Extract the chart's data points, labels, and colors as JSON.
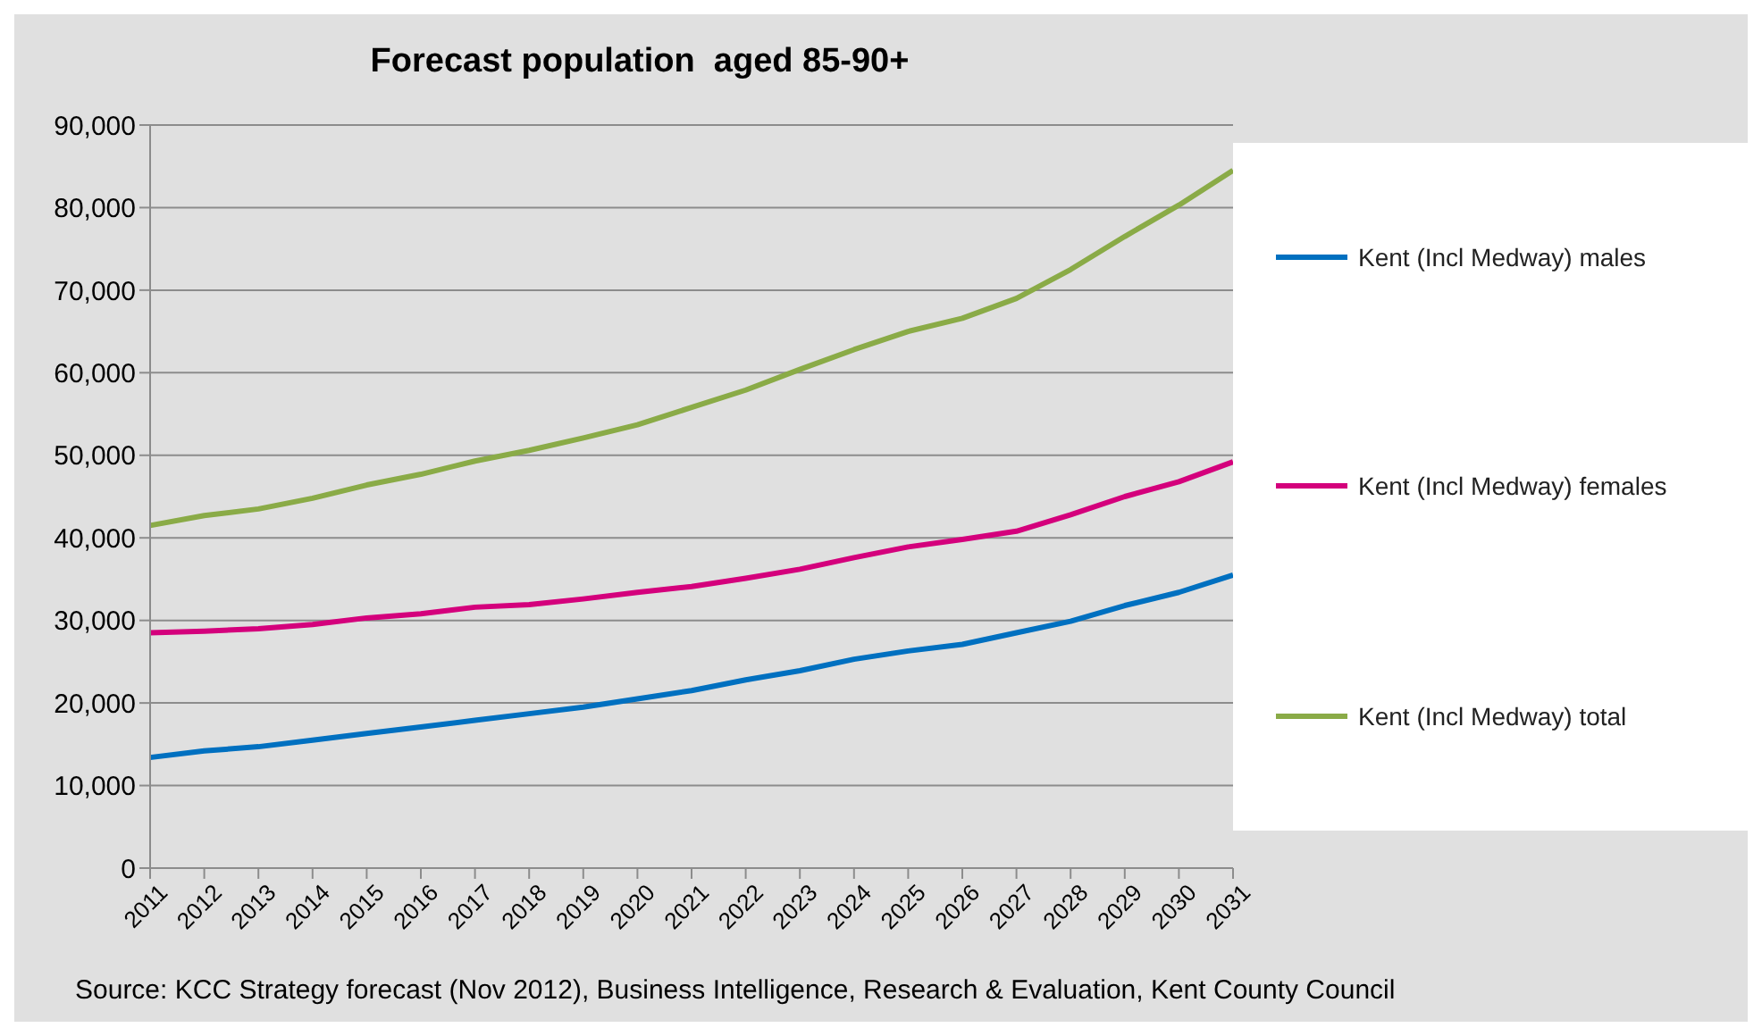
{
  "chart_data": {
    "type": "line",
    "title": "Forecast population  aged 85-90+",
    "categories": [
      "2011",
      "2012",
      "2013",
      "2014",
      "2015",
      "2016",
      "2017",
      "2018",
      "2019",
      "2020",
      "2021",
      "2022",
      "2023",
      "2024",
      "2025",
      "2026",
      "2027",
      "2028",
      "2029",
      "2030",
      "2031"
    ],
    "series": [
      {
        "name": "Kent (Incl Medway) males",
        "color": "#0070c0",
        "values": [
          13400,
          14200,
          14700,
          15500,
          16300,
          17100,
          17900,
          18700,
          19500,
          20500,
          21500,
          22800,
          23900,
          25300,
          26300,
          27100,
          28500,
          29900,
          31800,
          33400,
          35500
        ]
      },
      {
        "name": "Kent (Incl Medway) females",
        "color": "#d4007c",
        "values": [
          28500,
          28700,
          29000,
          29500,
          30300,
          30800,
          31600,
          31900,
          32600,
          33400,
          34100,
          35100,
          36200,
          37600,
          38900,
          39800,
          40800,
          42800,
          45000,
          46800,
          49200
        ]
      },
      {
        "name": "Kent (Incl Medway) total",
        "color": "#8aab47",
        "values": [
          41500,
          42700,
          43500,
          44800,
          46400,
          47700,
          49300,
          50600,
          52100,
          53700,
          55800,
          57900,
          60400,
          62800,
          65000,
          66600,
          69000,
          72500,
          76500,
          80300,
          84500
        ]
      }
    ],
    "ylim": [
      0,
      90000
    ],
    "yticks": [
      0,
      {
        "value": 10000,
        "label": "10,000"
      },
      {
        "value": 20000,
        "label": "20,000"
      },
      {
        "value": 30000,
        "label": "30,000"
      },
      {
        "value": 40000,
        "label": "40,000"
      },
      {
        "value": 50000,
        "label": "50,000"
      },
      {
        "value": 60000,
        "label": "60,000"
      },
      {
        "value": 70000,
        "label": "70,000"
      },
      {
        "value": 80000,
        "label": "80,000"
      },
      {
        "value": 90000,
        "label": "90,000"
      }
    ],
    "grid": "y",
    "legend": "right",
    "marker": "none",
    "line_style": "solid",
    "annotations": [
      "Source: KCC Strategy forecast (Nov 2012), Business Intelligence, Research & Evaluation, Kent County Council"
    ]
  }
}
